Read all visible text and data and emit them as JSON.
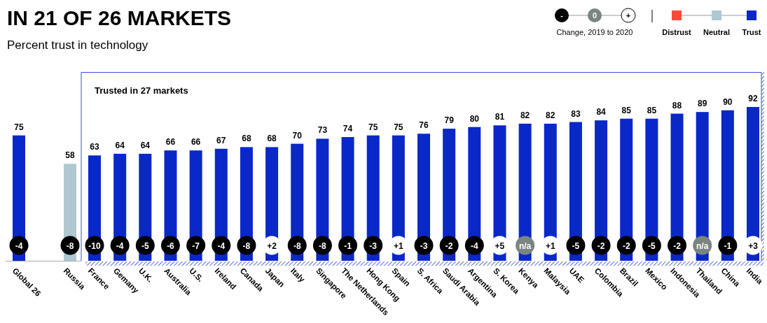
{
  "chart_data": {
    "type": "bar",
    "title": "IN 21 OF 26 MARKETS",
    "subtitle": "Percent trust in technology",
    "categories": [
      "Global 26",
      "Russia",
      "France",
      "Gemany",
      "U.K.",
      "Australia",
      "U.S.",
      "Ireland",
      "Canada",
      "Japan",
      "Italy",
      "Singapore",
      "The Netherlands",
      "Hong Kong",
      "Spain",
      "S. Africa",
      "Saudi Arabia",
      "Argentina",
      "S. Korea",
      "Kenya",
      "Malaysia",
      "UAE",
      "Colombia",
      "Brazil",
      "Mexico",
      "Indonesia",
      "Thailand",
      "China",
      "India"
    ],
    "data_labels": true,
    "legend": "top right",
    "series": [
      {
        "name": "Distrust",
        "color": "#f84a38",
        "values": [
          null,
          null,
          null,
          null,
          null,
          null,
          null,
          null,
          null,
          null,
          null,
          null,
          null,
          null,
          null,
          null,
          null,
          null,
          null,
          null,
          null,
          null,
          null,
          null,
          null,
          null,
          null,
          null,
          null
        ]
      },
      {
        "name": "Neutral",
        "color": "#aec8d2",
        "values": [
          null,
          58,
          null,
          null,
          null,
          null,
          null,
          null,
          null,
          null,
          null,
          null,
          null,
          null,
          null,
          null,
          null,
          null,
          null,
          null,
          null,
          null,
          null,
          null,
          null,
          null,
          null,
          null,
          null
        ]
      },
      {
        "name": "Trust",
        "color": "#0a28c8",
        "values": [
          75,
          null,
          63,
          64,
          64,
          66,
          66,
          67,
          68,
          68,
          70,
          73,
          74,
          75,
          75,
          76,
          79,
          80,
          81,
          82,
          82,
          83,
          84,
          85,
          85,
          88,
          89,
          90,
          92
        ]
      }
    ],
    "annotations": [
      "Trusted in 27 markets",
      "Change, 2019 to 2020",
      "-",
      "0",
      "+",
      {
        "text": "-4",
        "x": "Global 26"
      },
      {
        "text": "-8",
        "x": "Russia"
      },
      {
        "text": "-10",
        "x": "France"
      },
      {
        "text": "-4",
        "x": "Gemany"
      },
      {
        "text": "-5",
        "x": "U.K."
      },
      {
        "text": "-6",
        "x": "Australia"
      },
      {
        "text": "-7",
        "x": "U.S."
      },
      {
        "text": "-4",
        "x": "Ireland"
      },
      {
        "text": "-8",
        "x": "Canada"
      },
      {
        "text": "+2",
        "x": "Japan"
      },
      {
        "text": "-8",
        "x": "Italy"
      },
      {
        "text": "-8",
        "x": "Singapore"
      },
      {
        "text": "-1",
        "x": "The Netherlands"
      },
      {
        "text": "-3",
        "x": "Hong Kong"
      },
      {
        "text": "+1",
        "x": "Spain"
      },
      {
        "text": "-3",
        "x": "S. Africa"
      },
      {
        "text": "-2",
        "x": "Saudi Arabia"
      },
      {
        "text": "-4",
        "x": "Argentina"
      },
      {
        "text": "+5",
        "x": "S. Korea"
      },
      {
        "text": "n/a",
        "x": "Kenya"
      },
      {
        "text": "+1",
        "x": "Malaysia"
      },
      {
        "text": "-5",
        "x": "UAE"
      },
      {
        "text": "-2",
        "x": "Colombia"
      },
      {
        "text": "-2",
        "x": "Brazil"
      },
      {
        "text": "-5",
        "x": "Mexico"
      },
      {
        "text": "-2",
        "x": "Indonesia"
      },
      {
        "text": "n/a",
        "x": "Thailand"
      },
      {
        "text": "-1",
        "x": "China"
      },
      {
        "text": "+3",
        "x": "India"
      }
    ]
  }
}
